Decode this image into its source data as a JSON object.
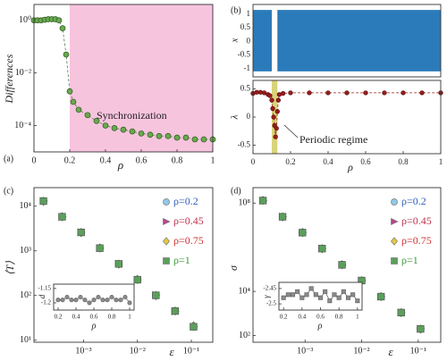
{
  "chart_data": [
    {
      "type": "line",
      "panel_label": "(a)",
      "ylabel": "Differences",
      "xlabel": "ρ",
      "annotation": "Synchronization",
      "xlim": [
        0,
        1
      ],
      "ylim": [
        1e-05,
        4
      ],
      "yscale": "log",
      "xticks": [
        0,
        0.2,
        0.4,
        0.6,
        0.8,
        1
      ],
      "yticks": [
        {
          "value": 1,
          "label": "10⁰"
        },
        {
          "value": 0.01,
          "label": "10⁻²"
        },
        {
          "value": 0.0001,
          "label": "10⁻⁴"
        }
      ],
      "highlight": {
        "range": [
          0.2,
          1
        ],
        "color": "#f7c4de"
      },
      "x": [
        0,
        0.02,
        0.04,
        0.06,
        0.08,
        0.1,
        0.12,
        0.14,
        0.16,
        0.18,
        0.2,
        0.22,
        0.25,
        0.3,
        0.35,
        0.4,
        0.45,
        0.5,
        0.55,
        0.6,
        0.65,
        0.7,
        0.75,
        0.8,
        0.85,
        0.9,
        0.95,
        1
      ],
      "series": [
        {
          "color": "#6aa84f",
          "edge": "#2d5a1e",
          "line_color": "#5a7a50",
          "dashed": true,
          "marker": "circle",
          "values": [
            1,
            1,
            1,
            1.05,
            1.1,
            1.1,
            1.1,
            1,
            0.5,
            0.05,
            0.002,
            0.0008,
            0.0004,
            0.00025,
            0.00015,
            0.0001,
            8e-05,
            7e-05,
            6e-05,
            5e-05,
            4.5e-05,
            4e-05,
            4e-05,
            3.5e-05,
            3.5e-05,
            3e-05,
            3e-05,
            3e-05
          ]
        }
      ]
    },
    {
      "type": "band",
      "panel_label": "(b)",
      "ylabel": "x",
      "xlim": [
        0,
        1
      ],
      "ylim": [
        -1.3,
        1.35
      ],
      "yticks": [
        -1,
        -0.5,
        0,
        0.5,
        1
      ],
      "x": [
        0,
        0.1,
        0.105,
        0.12,
        0.13,
        1
      ],
      "series": [
        {
          "color": "#2b7bba",
          "values": [
            -1.1,
            -1.1,
            null,
            null,
            -1.1,
            -1.1
          ]
        },
        {
          "color": "#2b7bba",
          "values": [
            1.15,
            1.15,
            null,
            null,
            1.15,
            1.15
          ]
        }
      ]
    },
    {
      "type": "line",
      "ylabel": "λ",
      "xlabel": "ρ",
      "annotation": "Periodic regime",
      "xlim": [
        0,
        1
      ],
      "ylim": [
        -0.65,
        0.65
      ],
      "yticks": [
        -0.5,
        0,
        0.5
      ],
      "xticks": [
        0,
        0.2,
        0.4,
        0.6,
        0.8,
        1
      ],
      "highlight": {
        "range": [
          0.1,
          0.13
        ],
        "color": "#d9d37a"
      },
      "x": [
        0,
        0.02,
        0.04,
        0.06,
        0.08,
        0.09,
        0.1,
        0.105,
        0.11,
        0.115,
        0.12,
        0.125,
        0.13,
        0.135,
        0.14,
        0.16,
        0.2,
        0.3,
        0.4,
        0.5,
        0.6,
        0.7,
        0.8,
        0.9,
        1
      ],
      "series": [
        {
          "color": "#9b1c1c",
          "edge": "#5a0e0e",
          "line_color": "#9b1c1c",
          "dashed": true,
          "marker": "circle",
          "values": [
            0.42,
            0.44,
            0.44,
            0.43,
            0.4,
            0.38,
            0.3,
            0.15,
            0,
            -0.15,
            -0.35,
            -0.2,
            0.1,
            0.3,
            0.4,
            0.42,
            0.43,
            0.43,
            0.43,
            0.43,
            0.43,
            0.43,
            0.43,
            0.43,
            0.43
          ]
        }
      ]
    },
    {
      "type": "scatter",
      "panel_label": "(c)",
      "ylabel": "⟨T⟩",
      "xlabel": "ε",
      "xscale": "log",
      "yscale": "log",
      "xlim": [
        0.00012,
        0.25
      ],
      "ylim": [
        9,
        26000
      ],
      "xticks": [
        {
          "value": 0.001,
          "label": "10⁻³"
        },
        {
          "value": 0.01,
          "label": "10⁻²"
        },
        {
          "value": 0.1,
          "label": "10⁻¹"
        }
      ],
      "yticks": [
        {
          "value": 10,
          "label": "10¹"
        },
        {
          "value": 100,
          "label": "10²"
        },
        {
          "value": 1000,
          "label": "10³"
        },
        {
          "value": 10000,
          "label": "10⁴"
        }
      ],
      "legend": "upper right",
      "x": [
        0.00018,
        0.0004,
        0.0009,
        0.002,
        0.0045,
        0.01,
        0.022,
        0.05,
        0.11
      ],
      "series": [
        {
          "name": "ρ=0.2",
          "color": "#8ecae6",
          "text_color": "#2f5fbf",
          "marker": "circle",
          "values": [
            13000,
            5800,
            2580,
            1150,
            510,
            227,
            101,
            45,
            20
          ]
        },
        {
          "name": "ρ=0.45",
          "color": "#c0408f",
          "text_color": "#c0304a",
          "marker": "triangle",
          "values": [
            13100,
            5750,
            2600,
            1140,
            515,
            225,
            102,
            44,
            20
          ]
        },
        {
          "name": "ρ=0.75",
          "color": "#e8c840",
          "text_color": "#d03030",
          "marker": "diamond",
          "values": [
            12900,
            5820,
            2570,
            1160,
            505,
            229,
            100,
            45,
            21
          ]
        },
        {
          "name": "ρ=1",
          "color": "#5aa05a",
          "text_color": "#3a9a3a",
          "marker": "square",
          "values": [
            13000,
            5800,
            2590,
            1150,
            510,
            226,
            101,
            45,
            20
          ]
        }
      ]
    },
    {
      "type": "line",
      "ylabel": "d",
      "xlabel": "ρ",
      "xlim": [
        0.15,
        1.05
      ],
      "ylim": [
        -1.225,
        -1.135
      ],
      "xticks": [
        0.2,
        0.4,
        0.6,
        0.8,
        1
      ],
      "yticks": [
        -1.15,
        -1.2
      ],
      "x": [
        0.2,
        0.25,
        0.3,
        0.35,
        0.4,
        0.45,
        0.5,
        0.55,
        0.6,
        0.65,
        0.7,
        0.75,
        0.8,
        0.85,
        0.9,
        0.95,
        1
      ],
      "series": [
        {
          "color": "#8a8a8a",
          "edge": "#666666",
          "line_color": "#666666",
          "marker": "circle",
          "values": [
            -1.19,
            -1.19,
            -1.18,
            -1.19,
            -1.19,
            -1.18,
            -1.19,
            -1.2,
            -1.19,
            -1.18,
            -1.19,
            -1.19,
            -1.18,
            -1.19,
            -1.19,
            -1.18,
            -1.2
          ]
        }
      ]
    },
    {
      "type": "scatter",
      "panel_label": "(d)",
      "ylabel": "σ",
      "xlabel": "ε",
      "xscale": "log",
      "yscale": "log",
      "xlim": [
        0.00012,
        0.25
      ],
      "ylim": [
        50,
        500000000
      ],
      "xticks": [
        {
          "value": 0.001,
          "label": "10⁻³"
        },
        {
          "value": 0.01,
          "label": "10⁻²"
        },
        {
          "value": 0.1,
          "label": "10⁻¹"
        }
      ],
      "yticks": [
        {
          "value": 100,
          "label": "10²"
        },
        {
          "value": 10000,
          "label": "10⁴"
        },
        {
          "value": 100000000,
          "label": "10⁸"
        }
      ],
      "legend": "upper right",
      "x": [
        0.00018,
        0.0004,
        0.0009,
        0.002,
        0.0045,
        0.01,
        0.022,
        0.05,
        0.11
      ],
      "series": [
        {
          "name": "ρ=0.2",
          "color": "#8ecae6",
          "text_color": "#2f5fbf",
          "marker": "circle",
          "values": [
            130000000,
            24000000,
            4600000,
            870000,
            160000,
            31000,
            5800,
            1100,
            200
          ]
        },
        {
          "name": "ρ=0.45",
          "color": "#c0408f",
          "text_color": "#c0304a",
          "marker": "triangle",
          "values": [
            128000000,
            24500000,
            4550000,
            880000,
            158000,
            31500,
            5750,
            1120,
            205
          ]
        },
        {
          "name": "ρ=0.75",
          "color": "#e8c840",
          "text_color": "#d03030",
          "marker": "diamond",
          "values": [
            132000000,
            23800000,
            4650000,
            860000,
            162000,
            30800,
            5850,
            1090,
            198
          ]
        },
        {
          "name": "ρ=1",
          "color": "#5aa05a",
          "text_color": "#3a9a3a",
          "marker": "square",
          "values": [
            130000000,
            24000000,
            4600000,
            870000,
            160000,
            31000,
            5800,
            1100,
            200
          ]
        }
      ]
    },
    {
      "type": "line",
      "ylabel": "γ",
      "xlabel": "ρ",
      "xlim": [
        0.15,
        1.05
      ],
      "ylim": [
        -2.52,
        -2.43
      ],
      "xticks": [
        0.2,
        0.4,
        0.6,
        0.8,
        1
      ],
      "yticks": [
        -2.45,
        -2.5
      ],
      "x": [
        0.2,
        0.25,
        0.3,
        0.35,
        0.4,
        0.45,
        0.5,
        0.55,
        0.6,
        0.65,
        0.7,
        0.75,
        0.8,
        0.85,
        0.9,
        0.95,
        1
      ],
      "series": [
        {
          "color": "#8a8a8a",
          "edge": "#666666",
          "line_color": "#666666",
          "marker": "square",
          "values": [
            -2.48,
            -2.47,
            -2.47,
            -2.46,
            -2.48,
            -2.47,
            -2.45,
            -2.47,
            -2.48,
            -2.46,
            -2.49,
            -2.47,
            -2.48,
            -2.46,
            -2.48,
            -2.47,
            -2.49
          ]
        }
      ]
    }
  ]
}
